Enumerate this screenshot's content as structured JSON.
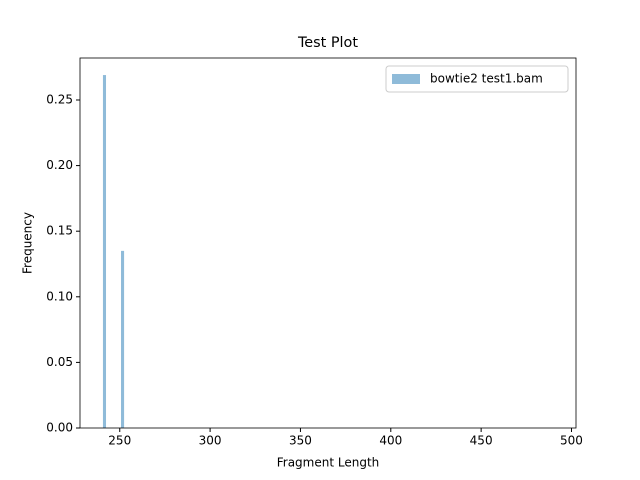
{
  "chart_data": {
    "type": "histogram",
    "title": "Test Plot",
    "xlabel": "Fragment Length",
    "ylabel": "Frequency",
    "bins": [
      240.7,
      242.4,
      244.0,
      245.7,
      247.4,
      249.0,
      250.7,
      252.4
    ],
    "series": [
      {
        "name": "bowtie2 test1.bam",
        "color": "#8fbbd9",
        "values": [
          0.269,
          0,
          0,
          0,
          0,
          0,
          0.135
        ]
      }
    ],
    "xlim": [
      228,
      502.5
    ],
    "xticks": [
      250,
      300,
      350,
      400,
      450,
      500
    ],
    "ylim": [
      0,
      0.282
    ],
    "yticks": [
      {
        "value": 0,
        "label": "0.00"
      },
      {
        "value": 0.05,
        "label": "0.05"
      },
      {
        "value": 0.1,
        "label": "0.10"
      },
      {
        "value": 0.15,
        "label": "0.15"
      },
      {
        "value": 0.2,
        "label": "0.20"
      },
      {
        "value": 0.25,
        "label": "0.25"
      }
    ],
    "legend": "upper right"
  }
}
